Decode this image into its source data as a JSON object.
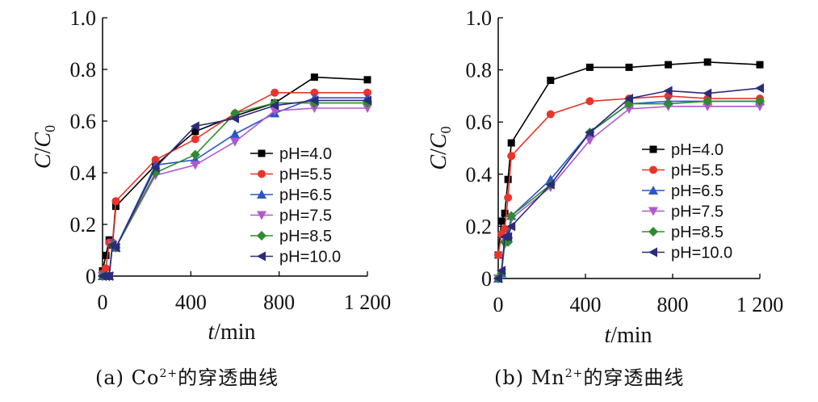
{
  "colors": {
    "pH=4.0": "#000000",
    "pH=5.5": "#e8352b",
    "pH=6.5": "#2a56c6",
    "pH=7.5": "#b257d0",
    "pH=8.5": "#2e8b2e",
    "pH=10.0": "#2b2b7a"
  },
  "markers": {
    "pH=4.0": "square",
    "pH=5.5": "circle",
    "pH=6.5": "triangle-up",
    "pH=7.5": "triangle-down",
    "pH=8.5": "diamond",
    "pH=10.0": "triangle-left"
  },
  "chart_data": [
    {
      "type": "line",
      "caption_prefix": "(a) Co",
      "caption_sup": "2+",
      "caption_suffix": "的穿透曲线",
      "xlabel_italic": "t",
      "xlabel_rest": "/min",
      "ylabel_c": "C",
      "ylabel_slash": "/",
      "ylabel_c0": "C",
      "ylabel_sub": "0",
      "xlim": [
        0,
        1200
      ],
      "ylim": [
        0,
        1.0
      ],
      "xticks": [
        0,
        400,
        800,
        1200
      ],
      "xtick_labels": [
        "0",
        "400",
        "800",
        "1 200"
      ],
      "yticks": [
        0,
        0.2,
        0.4,
        0.6,
        0.8,
        1.0
      ],
      "ytick_labels": [
        "0",
        "0.2",
        "0.4",
        "0.6",
        "0.8",
        "1.0"
      ],
      "legend_position": "right",
      "series": [
        {
          "name": "pH=4.0",
          "x": [
            0,
            15,
            30,
            45,
            60,
            240,
            420,
            600,
            780,
            960,
            1200
          ],
          "y": [
            0.02,
            0.08,
            0.14,
            0.12,
            0.27,
            0.43,
            0.56,
            0.62,
            0.67,
            0.77,
            0.76
          ]
        },
        {
          "name": "pH=5.5",
          "x": [
            0,
            15,
            30,
            45,
            60,
            240,
            420,
            600,
            780,
            960,
            1200
          ],
          "y": [
            0.01,
            0.03,
            0.13,
            0.13,
            0.29,
            0.45,
            0.53,
            0.63,
            0.71,
            0.71,
            0.71
          ]
        },
        {
          "name": "pH=6.5",
          "x": [
            0,
            15,
            30,
            45,
            60,
            240,
            420,
            600,
            780,
            960,
            1200
          ],
          "y": [
            0.0,
            0.0,
            0.0,
            0.13,
            0.11,
            0.43,
            0.45,
            0.55,
            0.63,
            0.69,
            0.69
          ]
        },
        {
          "name": "pH=7.5",
          "x": [
            0,
            15,
            30,
            45,
            60,
            240,
            420,
            600,
            780,
            960,
            1200
          ],
          "y": [
            0.0,
            0.0,
            0.0,
            0.12,
            0.11,
            0.39,
            0.43,
            0.52,
            0.64,
            0.65,
            0.65
          ]
        },
        {
          "name": "pH=8.5",
          "x": [
            0,
            15,
            30,
            45,
            60,
            240,
            420,
            600,
            780,
            960,
            1200
          ],
          "y": [
            0.0,
            0.0,
            0.0,
            0.12,
            0.11,
            0.4,
            0.47,
            0.63,
            0.67,
            0.67,
            0.67
          ]
        },
        {
          "name": "pH=10.0",
          "x": [
            0,
            15,
            30,
            45,
            60,
            240,
            420,
            600,
            780,
            960,
            1200
          ],
          "y": [
            0.0,
            0.0,
            0.0,
            0.12,
            0.11,
            0.42,
            0.58,
            0.61,
            0.66,
            0.68,
            0.68
          ]
        }
      ]
    },
    {
      "type": "line",
      "caption_prefix": "(b) Mn",
      "caption_sup": "2+",
      "caption_suffix": "的穿透曲线",
      "xlabel_italic": "t",
      "xlabel_rest": "/min",
      "ylabel_c": "C",
      "ylabel_slash": "/",
      "ylabel_c0": "C",
      "ylabel_sub": "0",
      "xlim": [
        0,
        1200
      ],
      "ylim": [
        0,
        1.0
      ],
      "xticks": [
        0,
        400,
        800,
        1200
      ],
      "xtick_labels": [
        "0",
        "400",
        "800",
        "1 200"
      ],
      "yticks": [
        0,
        0.2,
        0.4,
        0.6,
        0.8,
        1.0
      ],
      "ytick_labels": [
        "0",
        "0.2",
        "0.4",
        "0.6",
        "0.8",
        "1.0"
      ],
      "legend_position": "right",
      "series": [
        {
          "name": "pH=4.0",
          "x": [
            0,
            15,
            30,
            45,
            60,
            240,
            420,
            600,
            780,
            960,
            1200
          ],
          "y": [
            0.09,
            0.22,
            0.25,
            0.38,
            0.52,
            0.76,
            0.81,
            0.81,
            0.82,
            0.83,
            0.82
          ]
        },
        {
          "name": "pH=5.5",
          "x": [
            0,
            15,
            30,
            45,
            60,
            240,
            420,
            600,
            780,
            960,
            1200
          ],
          "y": [
            0.09,
            0.17,
            0.19,
            0.31,
            0.47,
            0.63,
            0.68,
            0.69,
            0.7,
            0.69,
            0.69
          ]
        },
        {
          "name": "pH=6.5",
          "x": [
            0,
            15,
            30,
            45,
            60,
            240,
            420,
            600,
            780,
            960,
            1200
          ],
          "y": [
            0.0,
            0.02,
            0.15,
            0.17,
            0.24,
            0.38,
            0.56,
            0.67,
            0.68,
            0.68,
            0.68
          ]
        },
        {
          "name": "pH=7.5",
          "x": [
            0,
            15,
            30,
            45,
            60,
            240,
            420,
            600,
            780,
            960,
            1200
          ],
          "y": [
            0.0,
            0.02,
            0.13,
            0.14,
            0.23,
            0.35,
            0.53,
            0.65,
            0.66,
            0.66,
            0.66
          ]
        },
        {
          "name": "pH=8.5",
          "x": [
            0,
            15,
            30,
            45,
            60,
            240,
            420,
            600,
            780,
            960,
            1200
          ],
          "y": [
            0.0,
            0.02,
            0.14,
            0.14,
            0.24,
            0.36,
            0.56,
            0.67,
            0.67,
            0.68,
            0.68
          ]
        },
        {
          "name": "pH=10.0",
          "x": [
            0,
            15,
            30,
            45,
            60,
            240,
            420,
            600,
            780,
            960,
            1200
          ],
          "y": [
            0.0,
            0.03,
            0.16,
            0.16,
            0.2,
            0.36,
            0.56,
            0.69,
            0.72,
            0.71,
            0.73
          ]
        }
      ]
    }
  ]
}
